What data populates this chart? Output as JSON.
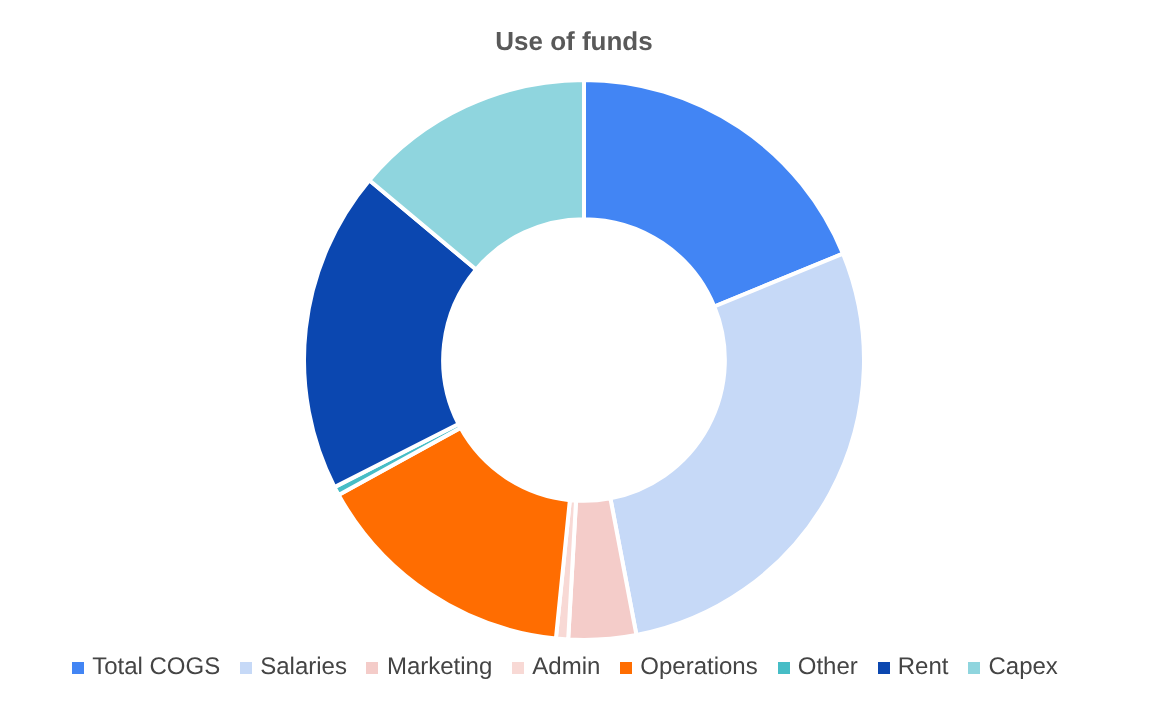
{
  "chart_data": {
    "type": "donut",
    "title": "Use of funds",
    "categories": [
      "Total COGS",
      "Salaries",
      "Marketing",
      "Admin",
      "Operations",
      "Other",
      "Rent",
      "Capex"
    ],
    "values": [
      18.8,
      28.2,
      3.9,
      0.7,
      15.4,
      0.5,
      18.6,
      13.9
    ],
    "colors": [
      "#4285f4",
      "#c6d9f7",
      "#f4ccc9",
      "#f8d9d5",
      "#ff6d01",
      "#46bdc6",
      "#0b47b0",
      "#8fd5de"
    ],
    "legend": "bottom"
  }
}
